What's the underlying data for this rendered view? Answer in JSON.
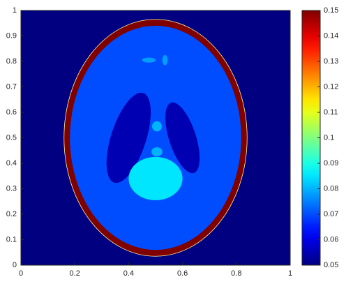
{
  "chart_data": {
    "type": "heatmap",
    "colormap": "jet",
    "xlim": [
      0,
      1
    ],
    "ylim": [
      0,
      1
    ],
    "xticks": [
      0,
      0.2,
      0.4,
      0.6,
      0.8,
      1
    ],
    "yticks": [
      0,
      0.1,
      0.2,
      0.3,
      0.4,
      0.5,
      0.6,
      0.7,
      0.8,
      0.9,
      1
    ],
    "clim": [
      0.05,
      0.15
    ],
    "cticks": [
      0.05,
      0.06,
      0.07,
      0.08,
      0.09,
      0.1,
      0.11,
      0.12,
      0.13,
      0.14,
      0.15
    ],
    "background": 0.05,
    "values": [
      0.15,
      0.07,
      0.055,
      0.055,
      0.085,
      0.08,
      0.08,
      0.078,
      0.078
    ]
  }
}
